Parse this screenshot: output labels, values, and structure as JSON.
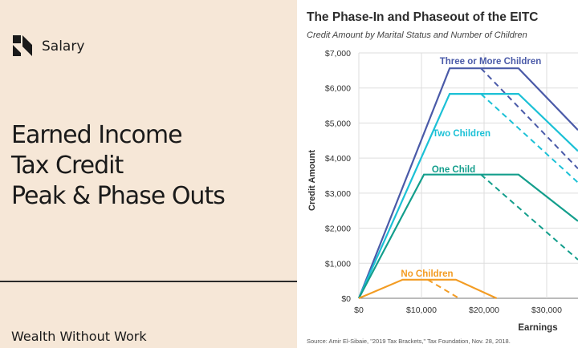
{
  "left_panel": {
    "brand": "Salary",
    "heading_lines": [
      "Earned Income",
      "Tax Credit",
      "Peak & Phase Outs"
    ],
    "footer": "Wealth Without Work",
    "colors": {
      "background": "#f6e7d7",
      "text": "#1a1a1a"
    }
  },
  "chart_data": {
    "type": "line",
    "title": "The Phase-In and Phaseout of the EITC",
    "subtitle": "Credit Amount by Marital Status and Number of Children",
    "xlabel": "Earnings",
    "ylabel": "Credit Amount",
    "source": "Source: Amir El-Sibaie, \"2019 Tax Brackets,\" Tax Foundation, Nov. 28, 2018.",
    "xlim": [
      0,
      35000
    ],
    "ylim": [
      0,
      7000
    ],
    "x_ticks": [
      0,
      10000,
      20000,
      30000
    ],
    "x_tick_labels": [
      "$0",
      "$10,000",
      "$20,000",
      "$30,000"
    ],
    "y_ticks": [
      0,
      1000,
      2000,
      3000,
      4000,
      5000,
      6000,
      7000
    ],
    "y_tick_labels": [
      "$0",
      "$1,000",
      "$2,000",
      "$3,000",
      "$4,000",
      "$5,000",
      "$6,000",
      "$7,000"
    ],
    "grid": true,
    "series": [
      {
        "name": "Three or More Children",
        "color": "#4a5aa8",
        "solid": [
          [
            0,
            0
          ],
          [
            14500,
            6560
          ],
          [
            25500,
            6560
          ],
          [
            35000,
            4800
          ]
        ],
        "dashed": [
          [
            19500,
            6560
          ],
          [
            35000,
            3700
          ]
        ]
      },
      {
        "name": "Two Children",
        "color": "#1cc1d6",
        "solid": [
          [
            0,
            0
          ],
          [
            14500,
            5830
          ],
          [
            25500,
            5830
          ],
          [
            35000,
            4200
          ]
        ],
        "dashed": [
          [
            19500,
            5830
          ],
          [
            35000,
            3300
          ]
        ]
      },
      {
        "name": "One Child",
        "color": "#139e8c",
        "solid": [
          [
            0,
            0
          ],
          [
            10400,
            3530
          ],
          [
            25500,
            3530
          ],
          [
            35000,
            2200
          ]
        ],
        "dashed": [
          [
            19500,
            3530
          ],
          [
            35000,
            1100
          ]
        ]
      },
      {
        "name": "No Children",
        "color": "#f39c23",
        "solid": [
          [
            0,
            0
          ],
          [
            7000,
            530
          ],
          [
            15500,
            530
          ],
          [
            22000,
            0
          ]
        ],
        "dashed": [
          [
            11000,
            530
          ],
          [
            16000,
            0
          ]
        ]
      }
    ]
  }
}
